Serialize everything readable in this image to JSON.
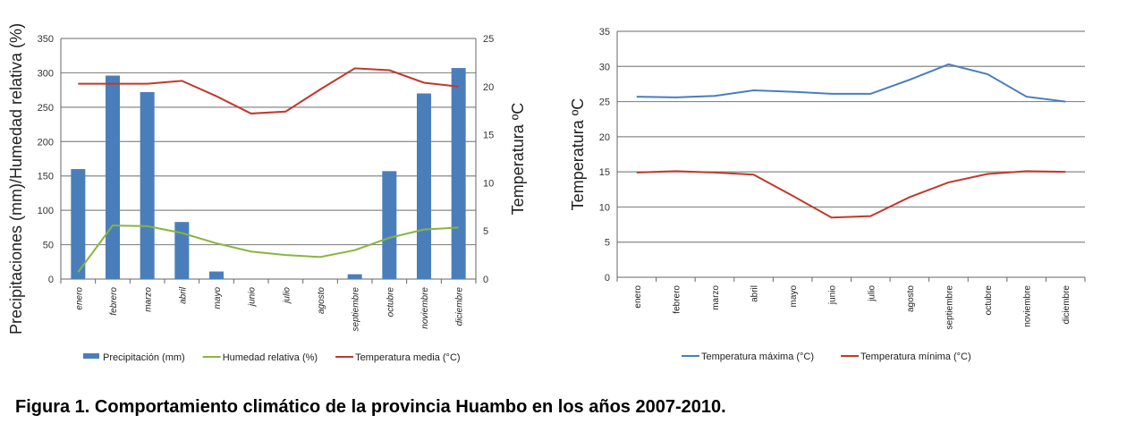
{
  "caption": "Figura 1. Comportamiento climático de la provincia Huambo en los años 2007-2010.",
  "chart_data": [
    {
      "type": "bar+line",
      "categories": [
        "enero",
        "febrero",
        "marzo",
        "abril",
        "mayo",
        "junio",
        "julio",
        "agosto",
        "septiembre",
        "octubre",
        "noviembre",
        "diciembre"
      ],
      "ylabel": "Precipitaciones (mm)/Humedad relativa (%)",
      "y2label": "Temperatura ºC",
      "ylim": [
        0,
        350
      ],
      "yticks": [
        0,
        50,
        100,
        150,
        200,
        250,
        300,
        350
      ],
      "y2lim": [
        0,
        25
      ],
      "y2ticks": [
        0,
        5,
        10,
        15,
        20,
        25
      ],
      "grid": true,
      "legend": "bottom",
      "series": [
        {
          "name": "Precipitación (mm)",
          "kind": "bar",
          "axis": "left",
          "color": "#4a7ebb",
          "values": [
            160,
            296,
            272,
            83,
            11,
            0,
            0,
            0,
            7,
            157,
            270,
            307
          ]
        },
        {
          "name": "Humedad relativa (%)",
          "kind": "line",
          "axis": "left",
          "color": "#8ab43f",
          "values": [
            10,
            78,
            77,
            67,
            52,
            40,
            35,
            32,
            42,
            60,
            72,
            75
          ]
        },
        {
          "name": "Temperatura media  (°C)",
          "kind": "line",
          "axis": "right",
          "color": "#c0392b",
          "values": [
            20.3,
            20.3,
            20.3,
            20.6,
            19.0,
            17.2,
            17.4,
            19.7,
            21.9,
            21.7,
            20.4,
            20.0
          ]
        }
      ]
    },
    {
      "type": "line",
      "categories": [
        "enero",
        "febrero",
        "marzo",
        "abril",
        "mayo",
        "junio",
        "julio",
        "agosto",
        "septiembre",
        "octubre",
        "noviembre",
        "diciembre"
      ],
      "ylabel": "Temperatura ºC",
      "ylim": [
        0,
        35
      ],
      "yticks": [
        0,
        5,
        10,
        15,
        20,
        25,
        30,
        35
      ],
      "grid": true,
      "legend": "bottom",
      "series": [
        {
          "name": "Temperatura  máxima (°C)",
          "color": "#4a7ebb",
          "values": [
            25.7,
            25.6,
            25.8,
            26.6,
            26.4,
            26.1,
            26.1,
            28.1,
            30.3,
            28.9,
            25.7,
            25.0
          ]
        },
        {
          "name": "Temperatura mínima (°C)",
          "color": "#c0392b",
          "values": [
            14.9,
            15.1,
            14.9,
            14.6,
            11.6,
            8.5,
            8.7,
            11.4,
            13.5,
            14.7,
            15.1,
            15.0
          ]
        }
      ]
    }
  ]
}
